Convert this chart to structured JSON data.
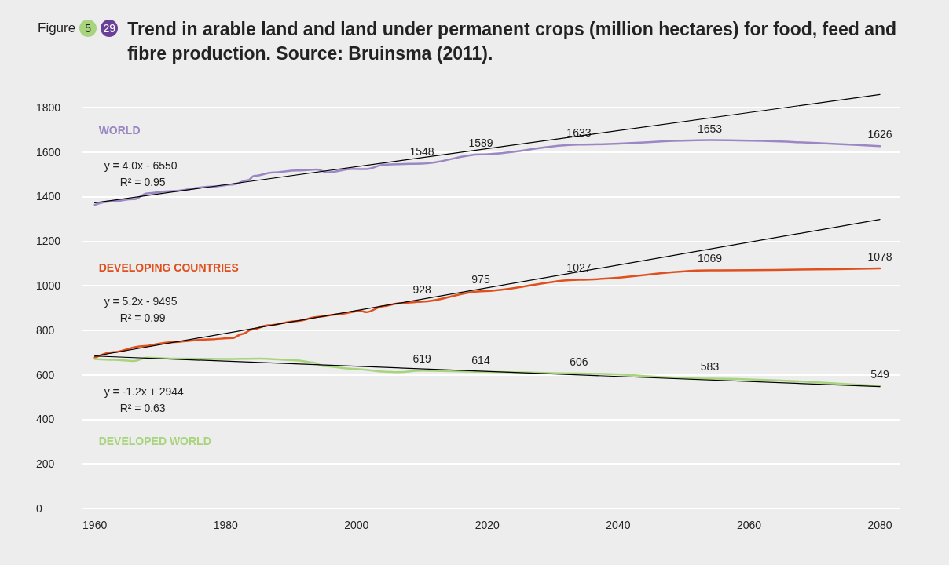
{
  "chart_data": {
    "type": "line",
    "title": "Trend in arable land and land under permanent crops (million hectares) for food, feed and fibre production. Source: Bruinsma (2011).",
    "xlim": [
      1958,
      2083
    ],
    "xticks": [
      1960,
      1980,
      2000,
      2020,
      2040,
      2060,
      2080
    ],
    "ylim": [
      0,
      1870
    ],
    "yticks": [
      0,
      200,
      400,
      600,
      800,
      1000,
      1200,
      1400,
      1600,
      1800
    ],
    "grid": "y",
    "legend": false,
    "marker": "none",
    "line_style": "solid",
    "series": [
      {
        "name": "WORLD",
        "color": "#9b87c4",
        "x": [
          1960,
          1962.4,
          1966,
          1968,
          1971.5,
          1978,
          1981,
          1983.5,
          1984.3,
          1987.3,
          1990.8,
          1994,
          1995.5,
          1999.4,
          2001.5,
          2004.3,
          2006.3,
          2010,
          2019,
          2034,
          2054,
          2080
        ],
        "values": [
          1363,
          1378,
          1388,
          1414,
          1424,
          1445,
          1454,
          1474,
          1492,
          1508,
          1517,
          1521,
          1508,
          1524,
          1523,
          1543,
          1545,
          1548,
          1589,
          1633,
          1653,
          1626
        ],
        "value_labels": [
          null,
          null,
          null,
          null,
          null,
          null,
          null,
          null,
          null,
          null,
          null,
          null,
          null,
          null,
          null,
          null,
          null,
          "1548",
          "1589",
          "1633",
          "1653",
          "1626"
        ]
      },
      {
        "name": "DEVELOPING COUNTRIES",
        "color": "#e0501e",
        "x": [
          1960,
          1962.9,
          1967.2,
          1971.5,
          1977.5,
          1981,
          1982.6,
          1984,
          1986.5,
          1990.8,
          1994.2,
          1997.2,
          2000.6,
          2001.5,
          2004.1,
          2006.3,
          2010,
          2019,
          2034,
          2054,
          2080
        ],
        "values": [
          677,
          702,
          728,
          746,
          759,
          765,
          784,
          803,
          822,
          841,
          860,
          872,
          887,
          881,
          908,
          920,
          928,
          975,
          1027,
          1069,
          1078
        ],
        "value_labels": [
          null,
          null,
          null,
          null,
          null,
          null,
          null,
          null,
          null,
          null,
          null,
          null,
          null,
          null,
          null,
          null,
          "928",
          "975",
          "1027",
          "1069",
          "1078"
        ]
      },
      {
        "name": "DEVELOPED WORLD",
        "color": "#a8d47e",
        "x": [
          1960,
          1962.9,
          1966,
          1968,
          1971.5,
          1980,
          1985.2,
          1990.8,
          1993.3,
          1995,
          1999.4,
          2004.5,
          2006.3,
          2010,
          2019,
          2034,
          2054,
          2080
        ],
        "values": [
          671,
          667,
          662,
          677,
          673,
          671,
          673,
          665,
          656,
          639,
          627,
          614,
          612,
          619,
          614,
          606,
          583,
          549
        ],
        "value_labels": [
          null,
          null,
          null,
          null,
          null,
          null,
          null,
          null,
          null,
          null,
          null,
          null,
          null,
          "619",
          "614",
          "606",
          "583",
          "549"
        ]
      },
      {
        "type": "line",
        "color": "#000000",
        "x": [
          1960,
          2080
        ],
        "values": [
          1372,
          1858
        ]
      },
      {
        "type": "line",
        "color": "#000000",
        "x": [
          1960,
          2080
        ],
        "values": [
          684,
          1297
        ]
      },
      {
        "type": "line",
        "color": "#000000",
        "x": [
          1960,
          2080
        ],
        "values": [
          684,
          547
        ]
      }
    ],
    "annotations": [
      "Figure",
      "5",
      "29",
      "y = 4.0x - 6550",
      "R² = 0.95",
      "y = 5.2x - 9495",
      "R² = 0.99",
      "y = -1.2x + 2944",
      "R² = 0.63"
    ]
  }
}
